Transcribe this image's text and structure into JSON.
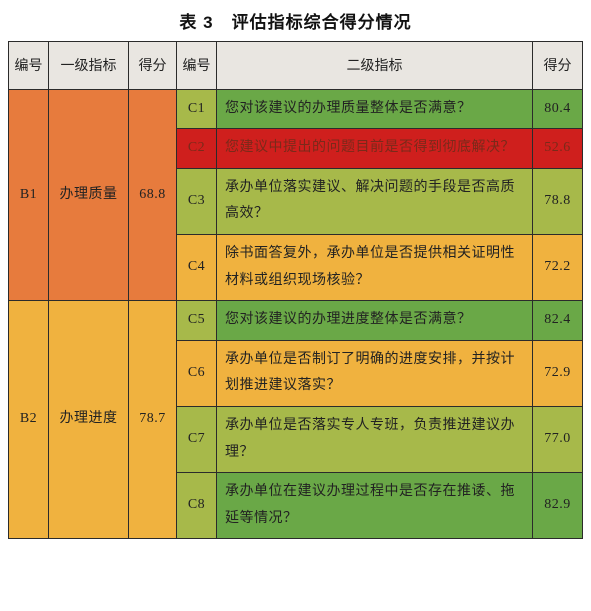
{
  "title": "表 3　评估指标综合得分情况",
  "colors": {
    "header_bg": "#e9e6e1",
    "orange": "#e77b3d",
    "amber": "#f0b23f",
    "olive": "#a7b94a",
    "green": "#6aa847",
    "red": "#cf1f1d",
    "red_text": "#7a2a1a",
    "border": "#2b2b2b"
  },
  "columns": {
    "id": "编号",
    "level1": "一级指标",
    "score1": "得分",
    "id2": "编号",
    "level2": "二级指标",
    "score2": "得分"
  },
  "groups": [
    {
      "id": "B1",
      "name": "办理质量",
      "score": "68.8",
      "group_color": "orange",
      "rows": [
        {
          "id": "C1",
          "text": "您对该建议的办理质量整体是否满意？",
          "score": "80.4",
          "id_color": "olive",
          "text_color": "green",
          "score_color": "green"
        },
        {
          "id": "C2",
          "text": "您建议中提出的问题目前是否得到彻底解决？",
          "score": "52.6",
          "id_color": "red",
          "text_color": "red",
          "score_color": "red",
          "dark_text": true
        },
        {
          "id": "C3",
          "text": "承办单位落实建议、解决问题的手段是否高质高效？",
          "score": "78.8",
          "id_color": "olive",
          "text_color": "olive",
          "score_color": "olive"
        },
        {
          "id": "C4",
          "text": "除书面答复外，承办单位是否提供相关证明性材料或组织现场核验？",
          "score": "72.2",
          "id_color": "amber",
          "text_color": "amber",
          "score_color": "amber"
        }
      ]
    },
    {
      "id": "B2",
      "name": "办理进度",
      "score": "78.7",
      "group_color": "amber",
      "rows": [
        {
          "id": "C5",
          "text": "您对该建议的办理进度整体是否满意？",
          "score": "82.4",
          "id_color": "olive",
          "text_color": "green",
          "score_color": "green"
        },
        {
          "id": "C6",
          "text": "承办单位是否制订了明确的进度安排，并按计划推进建议落实？",
          "score": "72.9",
          "id_color": "amber",
          "text_color": "amber",
          "score_color": "amber"
        },
        {
          "id": "C7",
          "text": "承办单位是否落实专人专班，负责推进建议办理？",
          "score": "77.0",
          "id_color": "olive",
          "text_color": "olive",
          "score_color": "olive"
        },
        {
          "id": "C8",
          "text": "承办单位在建议办理过程中是否存在推诿、拖延等情况？",
          "score": "82.9",
          "id_color": "olive",
          "text_color": "green",
          "score_color": "green"
        }
      ]
    }
  ]
}
